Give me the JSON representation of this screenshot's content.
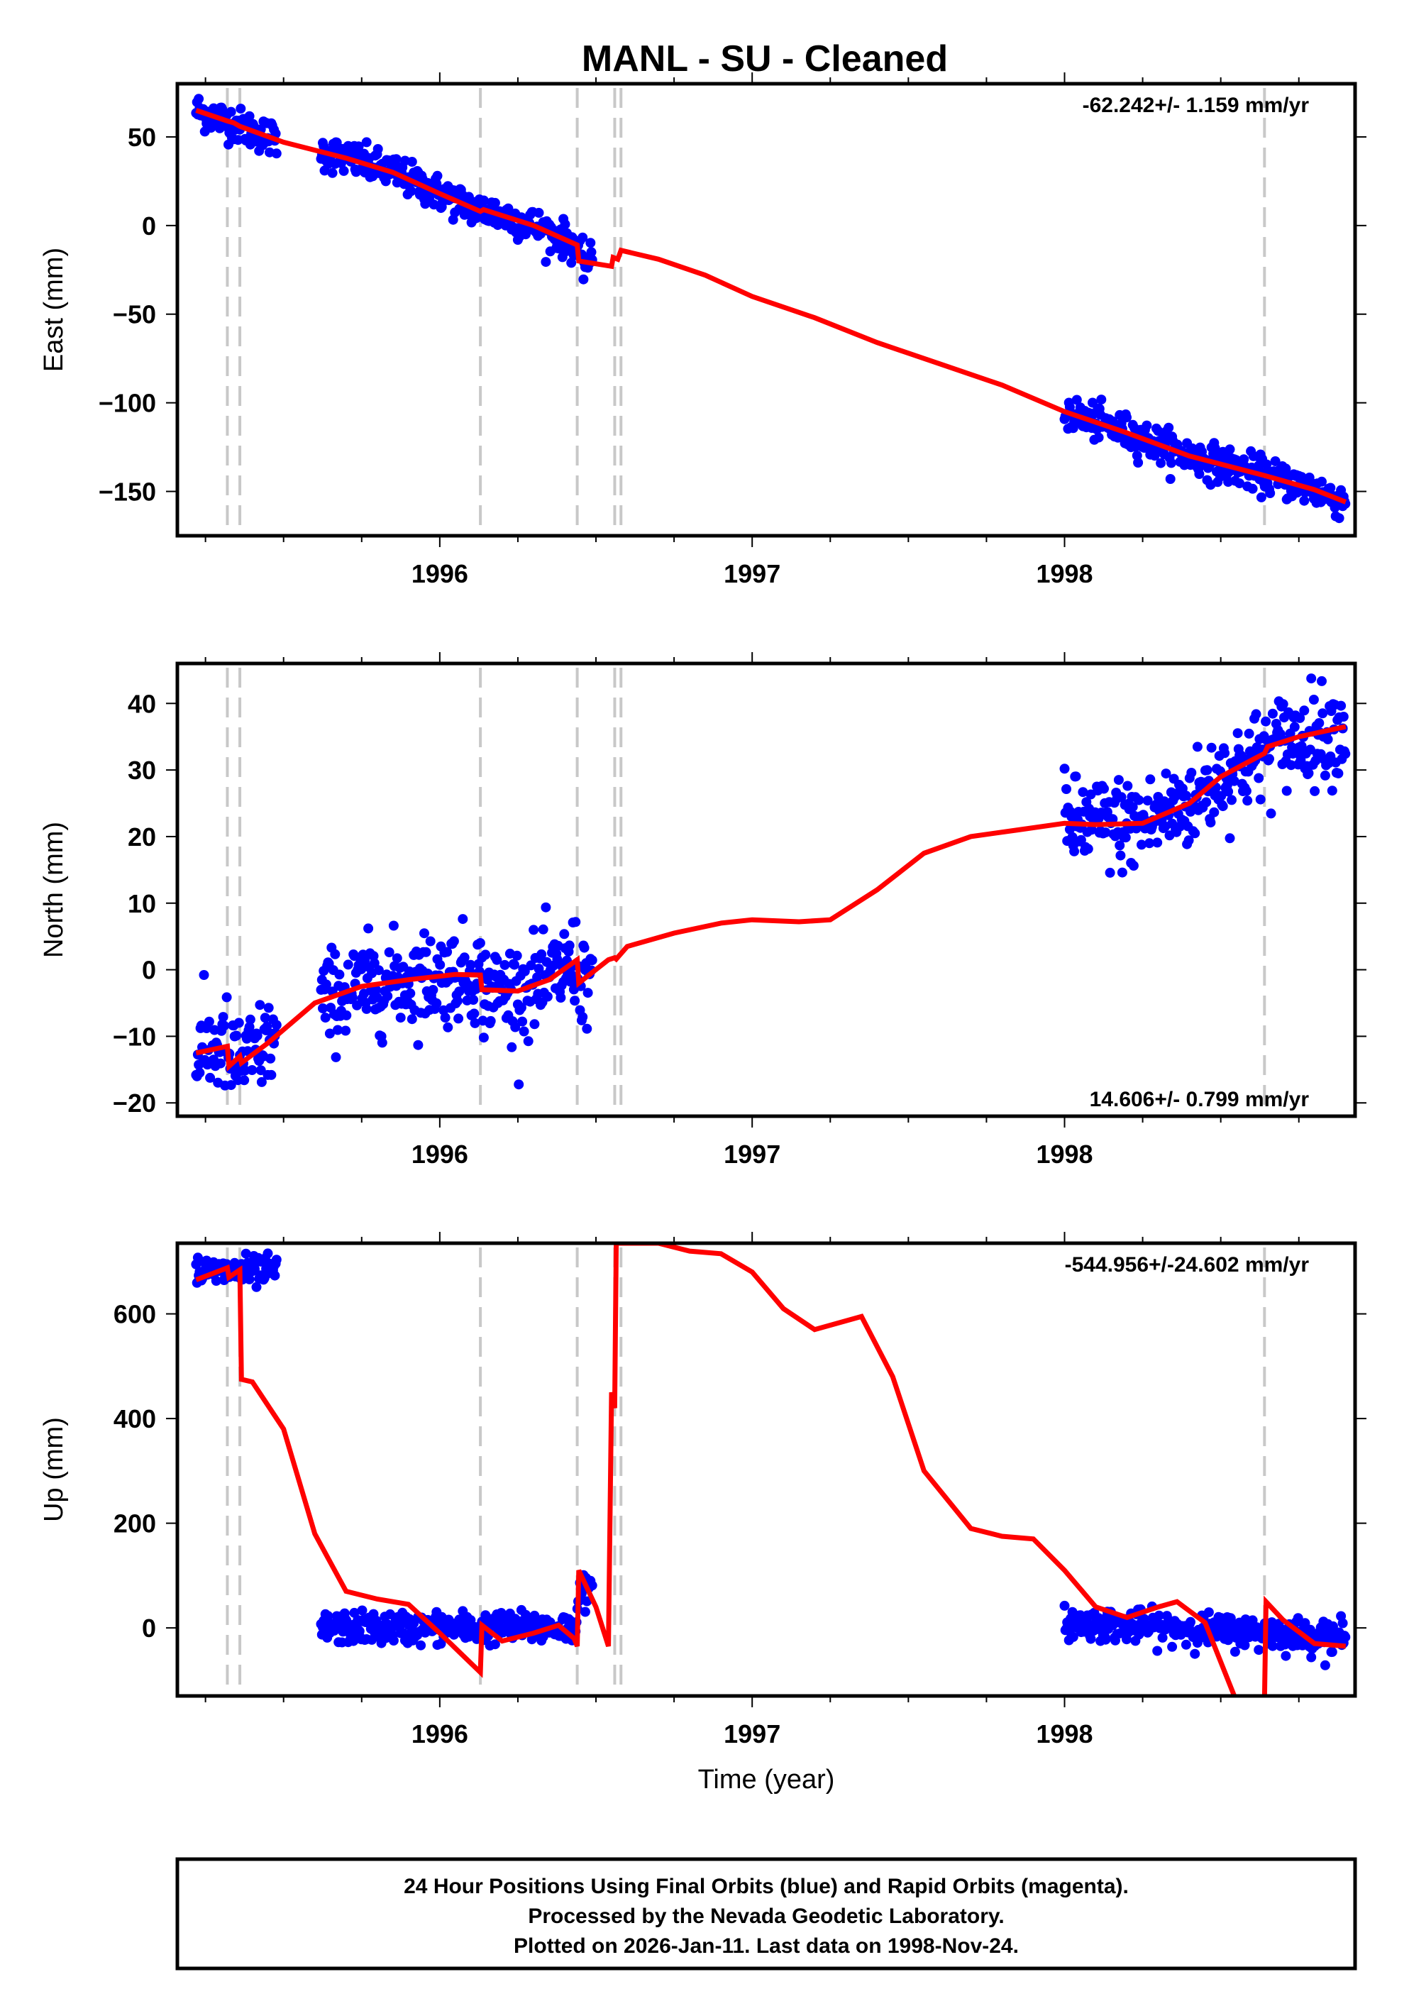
{
  "chart_data": {
    "type": "scatter",
    "title": "MANL  - SU - Cleaned",
    "xlabel": "Time (year)",
    "xlim": [
      1995.16,
      1998.93
    ],
    "x_ticks_major": [
      1996,
      1997,
      1998
    ],
    "x_tick_labels": [
      "1996",
      "1997",
      "1998"
    ],
    "x_ticks_minor_step": 0.25,
    "colors": {
      "data": "#0000ff",
      "model": "#ff0000",
      "event_lines": "#c8c8c8",
      "frame": "#000000"
    },
    "event_lines": [
      1995.32,
      1995.36,
      1996.13,
      1996.44,
      1996.56,
      1996.58,
      1998.64
    ],
    "data_segments": [
      [
        1995.22,
        1995.48
      ],
      [
        1995.62,
        1996.49
      ],
      [
        1998.0,
        1998.9
      ]
    ],
    "panels": [
      {
        "id": "east",
        "ylabel": "East (mm)",
        "ylim": [
          -175,
          80
        ],
        "y_ticks": [
          -150,
          -100,
          -50,
          0,
          50
        ],
        "y_tick_labels": [
          "−150",
          "−100",
          "−50",
          "0",
          "50"
        ],
        "rate_label": "-62.242+/- 1.159 mm/yr",
        "rate_position": "top-right",
        "scatter_sigma": 5,
        "model": [
          [
            1995.22,
            65
          ],
          [
            1995.32,
            59
          ],
          [
            1995.34,
            58
          ],
          [
            1995.36,
            56
          ],
          [
            1995.5,
            47
          ],
          [
            1995.7,
            38
          ],
          [
            1995.85,
            30
          ],
          [
            1996.0,
            18
          ],
          [
            1996.13,
            8
          ],
          [
            1996.14,
            9
          ],
          [
            1996.3,
            0
          ],
          [
            1996.44,
            -11
          ],
          [
            1996.445,
            -20
          ],
          [
            1996.55,
            -23
          ],
          [
            1996.555,
            -18
          ],
          [
            1996.57,
            -19
          ],
          [
            1996.58,
            -14
          ],
          [
            1996.7,
            -19
          ],
          [
            1996.85,
            -28
          ],
          [
            1997.0,
            -40
          ],
          [
            1997.2,
            -52
          ],
          [
            1997.4,
            -66
          ],
          [
            1997.6,
            -78
          ],
          [
            1997.8,
            -90
          ],
          [
            1998.0,
            -105
          ],
          [
            1998.2,
            -117
          ],
          [
            1998.4,
            -130
          ],
          [
            1998.64,
            -141
          ],
          [
            1998.8,
            -149
          ],
          [
            1998.9,
            -156
          ]
        ]
      },
      {
        "id": "north",
        "ylabel": "North (mm)",
        "ylim": [
          -22,
          46
        ],
        "y_ticks": [
          -20,
          -10,
          0,
          10,
          20,
          30,
          40
        ],
        "y_tick_labels": [
          "−20",
          "−10",
          "0",
          "10",
          "20",
          "30",
          "40"
        ],
        "rate_label": "14.606+/- 0.799 mm/yr",
        "rate_position": "bottom-right",
        "scatter_sigma": 3.5,
        "model": [
          [
            1995.22,
            -12.5
          ],
          [
            1995.32,
            -11.5
          ],
          [
            1995.325,
            -14.5
          ],
          [
            1995.36,
            -13
          ],
          [
            1995.365,
            -14
          ],
          [
            1995.45,
            -11
          ],
          [
            1995.6,
            -5
          ],
          [
            1995.75,
            -2.5
          ],
          [
            1995.9,
            -1.5
          ],
          [
            1996.05,
            -0.7
          ],
          [
            1996.13,
            -0.8
          ],
          [
            1996.135,
            -3
          ],
          [
            1996.25,
            -3.2
          ],
          [
            1996.35,
            -1.5
          ],
          [
            1996.44,
            1.5
          ],
          [
            1996.445,
            -2
          ],
          [
            1996.54,
            1.5
          ],
          [
            1996.56,
            1.8
          ],
          [
            1996.565,
            1.6
          ],
          [
            1996.6,
            3.5
          ],
          [
            1996.75,
            5.5
          ],
          [
            1996.9,
            7
          ],
          [
            1997.0,
            7.5
          ],
          [
            1997.15,
            7.2
          ],
          [
            1997.25,
            7.5
          ],
          [
            1997.4,
            12
          ],
          [
            1997.55,
            17.5
          ],
          [
            1997.7,
            20
          ],
          [
            1997.85,
            21
          ],
          [
            1998.0,
            22
          ],
          [
            1998.1,
            21.8
          ],
          [
            1998.25,
            22
          ],
          [
            1998.4,
            25
          ],
          [
            1998.5,
            29
          ],
          [
            1998.6,
            31.5
          ],
          [
            1998.64,
            32.5
          ],
          [
            1998.65,
            33.5
          ],
          [
            1998.75,
            35
          ],
          [
            1998.9,
            36.5
          ]
        ]
      },
      {
        "id": "up",
        "ylabel": "Up (mm)",
        "ylim": [
          -130,
          735
        ],
        "y_ticks": [
          0,
          200,
          400,
          600
        ],
        "y_tick_labels": [
          "0",
          "200",
          "400",
          "600"
        ],
        "rate_label": "-544.956+/-24.602 mm/yr",
        "rate_position": "top-right",
        "scatter_sigma": 15,
        "model": [
          [
            1995.22,
            665
          ],
          [
            1995.32,
            688
          ],
          [
            1995.325,
            670
          ],
          [
            1995.36,
            684
          ],
          [
            1995.365,
            475
          ],
          [
            1995.4,
            470
          ],
          [
            1995.5,
            380
          ],
          [
            1995.6,
            180
          ],
          [
            1995.7,
            70
          ],
          [
            1995.8,
            55
          ],
          [
            1995.9,
            45
          ],
          [
            1996.0,
            -10
          ],
          [
            1996.13,
            -85
          ],
          [
            1996.135,
            5
          ],
          [
            1996.2,
            -25
          ],
          [
            1996.3,
            -10
          ],
          [
            1996.38,
            5
          ],
          [
            1996.43,
            -20
          ],
          [
            1996.44,
            -35
          ],
          [
            1996.445,
            110
          ],
          [
            1996.5,
            40
          ],
          [
            1996.54,
            -35
          ],
          [
            1996.55,
            450
          ],
          [
            1996.56,
            420
          ],
          [
            1996.565,
            735
          ],
          [
            1996.7,
            735
          ],
          [
            1996.8,
            720
          ],
          [
            1996.9,
            715
          ],
          [
            1997.0,
            680
          ],
          [
            1997.1,
            610
          ],
          [
            1997.2,
            570
          ],
          [
            1997.35,
            595
          ],
          [
            1997.45,
            480
          ],
          [
            1997.55,
            300
          ],
          [
            1997.7,
            190
          ],
          [
            1997.8,
            175
          ],
          [
            1997.9,
            170
          ],
          [
            1998.0,
            110
          ],
          [
            1998.1,
            40
          ],
          [
            1998.2,
            20
          ],
          [
            1998.3,
            40
          ],
          [
            1998.36,
            50
          ],
          [
            1998.45,
            10
          ],
          [
            1998.55,
            -140
          ],
          [
            1998.64,
            -140
          ],
          [
            1998.645,
            50
          ],
          [
            1998.7,
            15
          ],
          [
            1998.8,
            -30
          ],
          [
            1998.9,
            -35
          ]
        ]
      }
    ],
    "footer_lines": [
      "24 Hour Positions Using Final Orbits (blue) and Rapid Orbits (magenta).",
      "Processed by the Nevada Geodetic Laboratory.",
      "Plotted on 2026-Jan-11. Last data on 1998-Nov-24."
    ]
  }
}
